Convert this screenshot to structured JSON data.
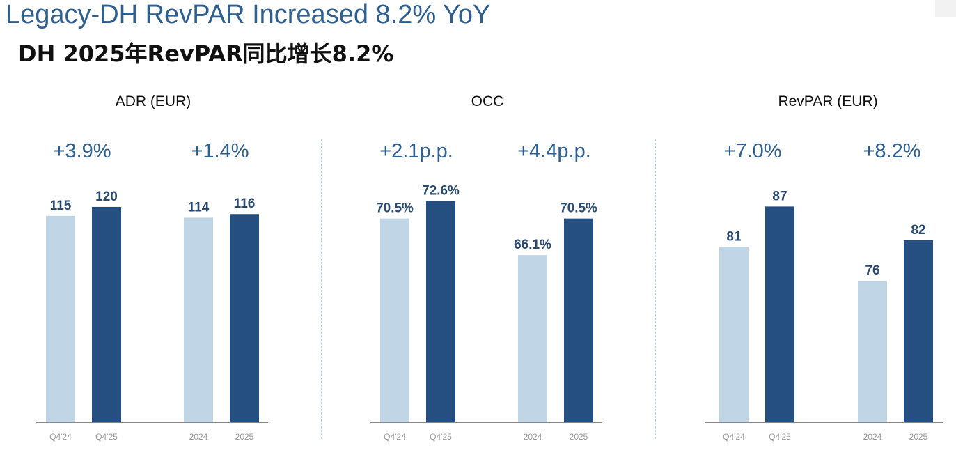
{
  "header": {
    "title": "Legacy-DH RevPAR Increased 8.2% YoY",
    "subtitle": "DH 2025年RevPAR同比增长8.2%"
  },
  "colors": {
    "title_blue": "#2e5f8f",
    "bar_prior": "#c0d6e6",
    "bar_current": "#244f80",
    "label_text": "#2b4a6f",
    "axis": "#888888",
    "tick": "#9a9a9a"
  },
  "chart_data": [
    {
      "type": "bar",
      "title": "ADR (EUR)",
      "categories": [
        "Q4'24",
        "Q4'25",
        "2024",
        "2025"
      ],
      "values": [
        115,
        120,
        114,
        116
      ],
      "value_labels": [
        "115",
        "120",
        "114",
        "116"
      ],
      "growth_labels": [
        "+3.9%",
        "+1.4%"
      ],
      "ylim": [
        0,
        139
      ],
      "grid": false
    },
    {
      "type": "bar",
      "title": "OCC",
      "categories": [
        "Q4'24",
        "Q4'25",
        "2024",
        "2025"
      ],
      "values": [
        70.5,
        72.6,
        66.1,
        70.5
      ],
      "value_labels": [
        "70.5%",
        "72.6%",
        "66.1%",
        "70.5%"
      ],
      "growth_labels": [
        "+2.1p.p.",
        "+4.4p.p."
      ],
      "ylim": [
        46,
        76
      ],
      "grid": false
    },
    {
      "type": "bar",
      "title": "RevPAR (EUR)",
      "categories": [
        "Q4'24",
        "Q4'25",
        "2024",
        "2025"
      ],
      "values": [
        81,
        87,
        76,
        82
      ],
      "value_labels": [
        "81",
        "87",
        "76",
        "82"
      ],
      "growth_labels": [
        "+7.0%",
        "+8.2%"
      ],
      "ylim": [
        55,
        92
      ],
      "grid": false
    }
  ]
}
